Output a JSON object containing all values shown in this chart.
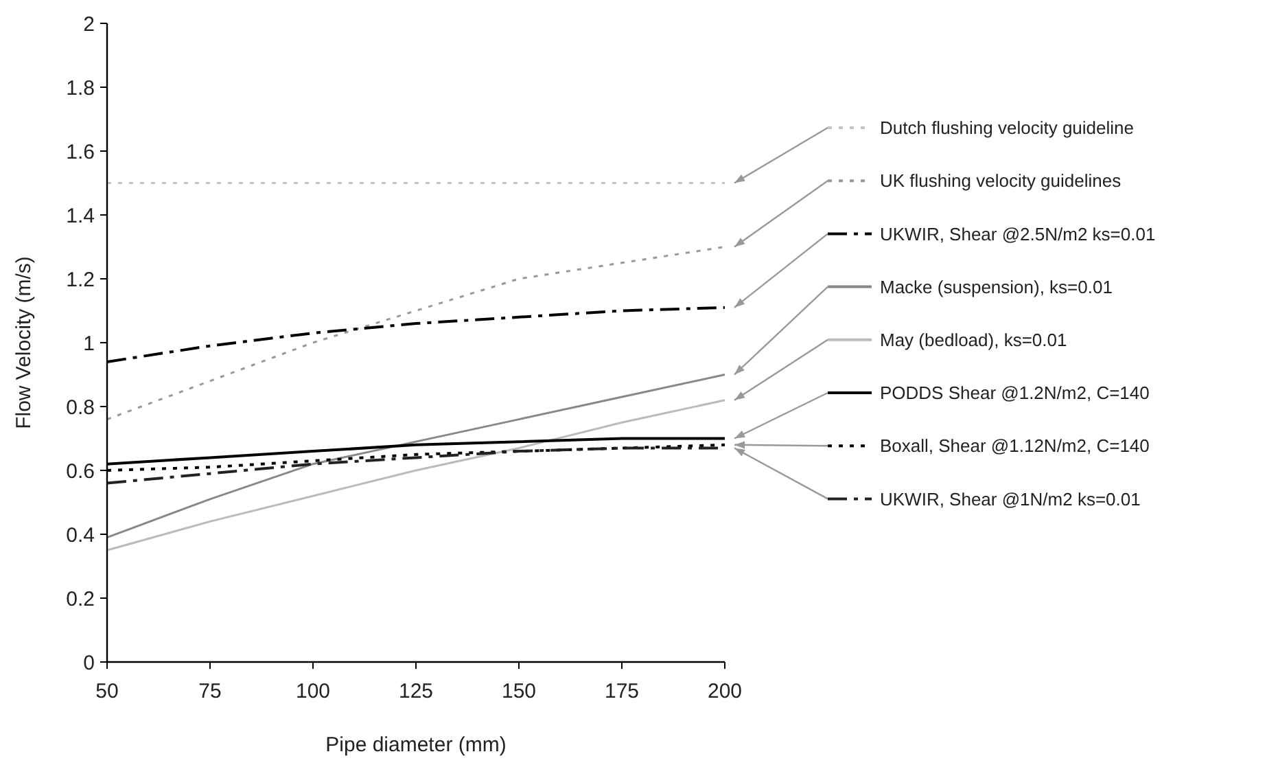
{
  "chart_data": {
    "type": "line",
    "xlabel": "Pipe diameter (mm)",
    "ylabel": "Flow Velocity (m/s)",
    "x": [
      50,
      75,
      100,
      125,
      150,
      175,
      200
    ],
    "xlim": [
      50,
      200
    ],
    "xticks": [
      50,
      75,
      100,
      125,
      150,
      175,
      200
    ],
    "ylim": [
      0,
      2
    ],
    "yticks": [
      0,
      0.2,
      0.4,
      0.6,
      0.8,
      1,
      1.2,
      1.4,
      1.6,
      1.8,
      2
    ],
    "legend": "right",
    "grid": false,
    "marker": "none",
    "series": [
      {
        "name": "Dutch flushing velocity guideline",
        "color": "#c4c4c4",
        "line_style": "dotted",
        "values": [
          1.5,
          1.5,
          1.5,
          1.5,
          1.5,
          1.5,
          1.5
        ]
      },
      {
        "name": "UK flushing velocity guidelines",
        "color": "#999999",
        "line_style": "dotted",
        "values": [
          0.76,
          0.88,
          1.0,
          1.1,
          1.2,
          1.25,
          1.3
        ]
      },
      {
        "name": "UKWIR, Shear @2.5N/m2 ks=0.01",
        "color": "#000000",
        "line_style": "dashed",
        "values": [
          0.94,
          0.99,
          1.03,
          1.06,
          1.08,
          1.1,
          1.11
        ]
      },
      {
        "name": "Macke (suspension), ks=0.01",
        "color": "#888888",
        "line_style": "solid",
        "values": [
          0.39,
          0.51,
          0.62,
          0.69,
          0.76,
          0.83,
          0.9
        ]
      },
      {
        "name": "May (bedload), ks=0.01",
        "color": "#bbbbbb",
        "line_style": "solid",
        "values": [
          0.35,
          0.44,
          0.52,
          0.6,
          0.67,
          0.75,
          0.82
        ]
      },
      {
        "name": "PODDS Shear @1.2N/m2, C=140",
        "color": "#000000",
        "line_style": "solid",
        "values": [
          0.62,
          0.64,
          0.66,
          0.68,
          0.69,
          0.7,
          0.7
        ]
      },
      {
        "name": "Boxall, Shear @1.12N/m2, C=140",
        "color": "#000000",
        "line_style": "dotted",
        "values": [
          0.6,
          0.61,
          0.63,
          0.65,
          0.66,
          0.67,
          0.68
        ]
      },
      {
        "name": "UKWIR, Shear @1N/m2 ks=0.01",
        "color": "#222222",
        "line_style": "dashed",
        "values": [
          0.56,
          0.59,
          0.62,
          0.64,
          0.66,
          0.67,
          0.67
        ]
      }
    ]
  }
}
